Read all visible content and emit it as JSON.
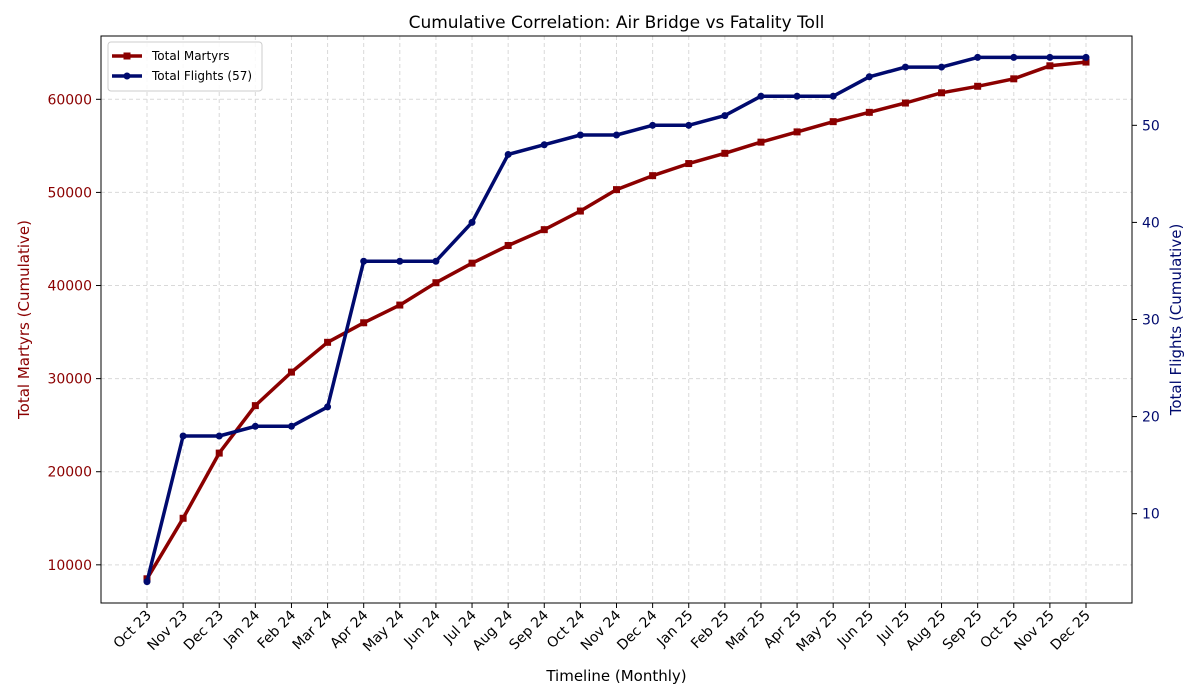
{
  "chart_data": {
    "type": "line",
    "title": "Cumulative Correlation: Air Bridge vs Fatality Toll",
    "xlabel": "Timeline (Monthly)",
    "ylabel_left": "Total Martyrs (Cumulative)",
    "ylabel_right": "Total Flights (Cumulative)",
    "categories": [
      "Oct 23",
      "Nov 23",
      "Dec 23",
      "Jan 24",
      "Feb 24",
      "Mar 24",
      "Apr 24",
      "May 24",
      "Jun 24",
      "Jul 24",
      "Aug 24",
      "Sep 24",
      "Oct 24",
      "Nov 24",
      "Dec 24",
      "Jan 25",
      "Feb 25",
      "Mar 25",
      "Apr 25",
      "May 25",
      "Jun 25",
      "Jul 25",
      "Aug 25",
      "Sep 25",
      "Oct 25",
      "Nov 25",
      "Dec 25"
    ],
    "ylim_left": [
      5900,
      66800
    ],
    "ylim_right": [
      0.8,
      59.2
    ],
    "yticks_left": [
      10000,
      20000,
      30000,
      40000,
      50000,
      60000
    ],
    "yticks_right": [
      10,
      20,
      30,
      40,
      50
    ],
    "grid": true,
    "legend_position": "top-left",
    "series": [
      {
        "name": "Total Martyrs",
        "axis": "left",
        "color": "#8b0000",
        "marker": "square",
        "values": [
          8500,
          15000,
          22000,
          27100,
          30700,
          33900,
          36000,
          37900,
          40300,
          42400,
          44300,
          46000,
          48000,
          50300,
          51800,
          53100,
          54200,
          55400,
          56500,
          57600,
          58600,
          59600,
          60700,
          61400,
          62200,
          63600,
          64000
        ]
      },
      {
        "name": "Total Flights (57)",
        "axis": "right",
        "color": "#000a6e",
        "marker": "circle",
        "values": [
          3,
          18,
          18,
          19,
          19,
          21,
          36,
          36,
          36,
          40,
          47,
          48,
          49,
          49,
          50,
          50,
          51,
          53,
          53,
          53,
          55,
          56,
          56,
          57,
          57,
          57,
          57
        ]
      }
    ]
  }
}
